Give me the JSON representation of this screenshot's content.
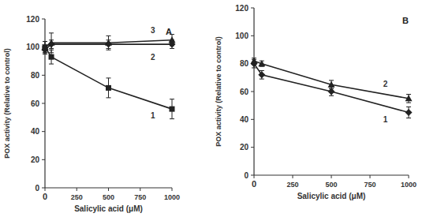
{
  "chart_data": [
    {
      "type": "line",
      "title": "A",
      "x_label": "Salicylic acid (μM)",
      "y_label": "POX activity (Relative to control)",
      "x": [
        0,
        50,
        500,
        1000
      ],
      "xlim": [
        0,
        1000
      ],
      "xticks": [
        0,
        250,
        500,
        750,
        1000
      ],
      "ylim": [
        0,
        120
      ],
      "yticks": [
        0,
        20,
        40,
        60,
        80,
        100,
        120
      ],
      "grid": false,
      "series": [
        {
          "name": "1",
          "color": "#222222",
          "marker": "square",
          "values": [
            100,
            93,
            71,
            56
          ],
          "errors": [
            4,
            5,
            7,
            7
          ]
        },
        {
          "name": "2",
          "color": "#222222",
          "marker": "diamond",
          "values": [
            98,
            102,
            102,
            102
          ],
          "errors": [
            3,
            3,
            3,
            3
          ]
        },
        {
          "name": "3",
          "color": "#222222",
          "marker": "triangle",
          "values": [
            100,
            103,
            103,
            105
          ],
          "errors": [
            4,
            7,
            5,
            4
          ]
        }
      ]
    },
    {
      "type": "line",
      "title": "B",
      "x_label": "Salicylic acid (μM)",
      "y_label": "POX activity (Relative to control)",
      "x": [
        0,
        50,
        500,
        1000
      ],
      "xlim": [
        0,
        1000
      ],
      "xticks": [
        0,
        250,
        500,
        750,
        1000
      ],
      "ylim": [
        0,
        120
      ],
      "yticks": [
        0,
        20,
        40,
        60,
        80,
        100,
        120
      ],
      "grid": false,
      "series": [
        {
          "name": "1",
          "color": "#222222",
          "marker": "diamond",
          "values": [
            80,
            72,
            60,
            45
          ],
          "errors": [
            3,
            3,
            3,
            4
          ]
        },
        {
          "name": "2",
          "color": "#222222",
          "marker": "triangle",
          "values": [
            82,
            80,
            65,
            55
          ],
          "errors": [
            2,
            2,
            3,
            3
          ]
        }
      ]
    }
  ]
}
